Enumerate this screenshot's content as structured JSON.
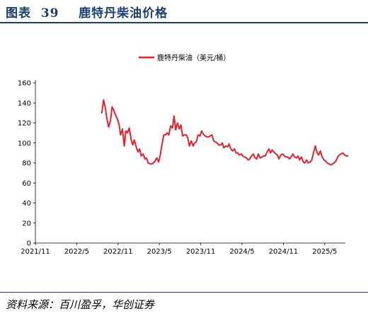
{
  "header": {
    "title": "图表  39    鹿特丹柴油价格"
  },
  "footer": {
    "source": "资料来源：百川盈孚，华创证券"
  },
  "chart_data": {
    "type": "line",
    "title": "",
    "xlabel": "",
    "ylabel": "",
    "ylim": [
      0,
      160
    ],
    "yticks": [
      0,
      20,
      40,
      60,
      80,
      100,
      120,
      140,
      160
    ],
    "xlim": [
      "2021-11",
      "2025-08"
    ],
    "xtick_labels": [
      "2021/11",
      "2022/5",
      "2022/11",
      "2023/5",
      "2023/11",
      "2024/5",
      "2024/11",
      "2025/5"
    ],
    "legend_position": "top-center",
    "grid": false,
    "color": "#e8202a",
    "series": [
      {
        "name": "鹿特丹柴油（美元/桶）",
        "x": [
          "2022-08-20",
          "2022-08-28",
          "2022-09-05",
          "2022-09-12",
          "2022-09-20",
          "2022-09-28",
          "2022-10-05",
          "2022-10-12",
          "2022-10-20",
          "2022-10-28",
          "2022-11-05",
          "2022-11-12",
          "2022-11-20",
          "2022-11-28",
          "2022-12-05",
          "2022-12-12",
          "2022-12-20",
          "2022-12-28",
          "2023-01-05",
          "2023-01-12",
          "2023-01-20",
          "2023-01-28",
          "2023-02-05",
          "2023-02-12",
          "2023-02-20",
          "2023-02-28",
          "2023-03-05",
          "2023-03-12",
          "2023-03-20",
          "2023-03-28",
          "2023-04-05",
          "2023-04-12",
          "2023-04-20",
          "2023-04-28",
          "2023-05-05",
          "2023-05-12",
          "2023-05-20",
          "2023-05-28",
          "2023-06-05",
          "2023-06-12",
          "2023-06-20",
          "2023-06-28",
          "2023-07-05",
          "2023-07-12",
          "2023-07-20",
          "2023-07-28",
          "2023-08-05",
          "2023-08-12",
          "2023-08-20",
          "2023-08-28",
          "2023-09-05",
          "2023-09-12",
          "2023-09-20",
          "2023-09-28",
          "2023-10-05",
          "2023-10-12",
          "2023-10-20",
          "2023-10-28",
          "2023-11-05",
          "2023-11-12",
          "2023-11-20",
          "2023-11-28",
          "2023-12-05",
          "2023-12-12",
          "2023-12-20",
          "2023-12-28",
          "2024-01-05",
          "2024-01-12",
          "2024-01-20",
          "2024-01-28",
          "2024-02-05",
          "2024-02-12",
          "2024-02-20",
          "2024-02-28",
          "2024-03-05",
          "2024-03-12",
          "2024-03-20",
          "2024-03-28",
          "2024-04-05",
          "2024-04-12",
          "2024-04-20",
          "2024-04-28",
          "2024-05-05",
          "2024-05-12",
          "2024-05-20",
          "2024-05-28",
          "2024-06-05",
          "2024-06-12",
          "2024-06-20",
          "2024-06-28",
          "2024-07-05",
          "2024-07-12",
          "2024-07-20",
          "2024-07-28",
          "2024-08-05",
          "2024-08-12",
          "2024-08-20",
          "2024-08-28",
          "2024-09-05",
          "2024-09-12",
          "2024-09-20",
          "2024-09-28",
          "2024-10-05",
          "2024-10-12",
          "2024-10-20",
          "2024-10-28",
          "2024-11-05",
          "2024-11-12",
          "2024-11-20",
          "2024-11-28",
          "2024-12-05",
          "2024-12-12",
          "2024-12-20",
          "2024-12-28",
          "2025-01-05",
          "2025-01-12",
          "2025-01-20",
          "2025-01-28",
          "2025-02-05",
          "2025-02-12",
          "2025-02-20",
          "2025-02-28",
          "2025-03-05",
          "2025-03-12",
          "2025-03-20",
          "2025-03-28",
          "2025-04-05",
          "2025-04-12",
          "2025-04-20",
          "2025-04-28",
          "2025-05-05",
          "2025-05-12",
          "2025-05-20",
          "2025-05-28",
          "2025-06-05",
          "2025-06-12",
          "2025-06-20",
          "2025-06-28",
          "2025-07-05",
          "2025-07-12",
          "2025-07-20",
          "2025-07-28",
          "2025-08-05",
          "2025-08-12"
        ],
        "values": [
          130,
          143,
          136,
          125,
          116,
          122,
          136,
          133,
          128,
          124,
          119,
          108,
          114,
          97,
          112,
          110,
          115,
          103,
          98,
          103,
          96,
          91,
          94,
          87,
          89,
          84,
          85,
          80,
          79,
          79,
          80,
          82,
          85,
          81,
          88,
          98,
          108,
          108,
          110,
          108,
          117,
          115,
          127,
          113,
          120,
          114,
          118,
          107,
          108,
          108,
          105,
          97,
          102,
          97,
          100,
          101,
          108,
          107,
          112,
          109,
          107,
          106,
          106,
          107,
          108,
          102,
          101,
          100,
          98,
          98,
          100,
          95,
          97,
          96,
          99,
          94,
          92,
          94,
          90,
          90,
          88,
          89,
          87,
          86,
          85,
          83,
          84,
          87,
          89,
          85,
          84,
          89,
          85,
          86,
          87,
          87,
          91,
          94,
          90,
          93,
          91,
          89,
          88,
          84,
          88,
          89,
          87,
          86,
          86,
          84,
          86,
          89,
          86,
          85,
          87,
          83,
          86,
          81,
          80,
          83,
          80,
          81,
          83,
          90,
          97,
          90,
          88,
          92,
          86,
          83,
          82,
          80,
          79,
          78,
          79,
          80,
          82,
          86,
          88,
          89,
          90,
          88,
          87,
          87
        ]
      }
    ]
  }
}
